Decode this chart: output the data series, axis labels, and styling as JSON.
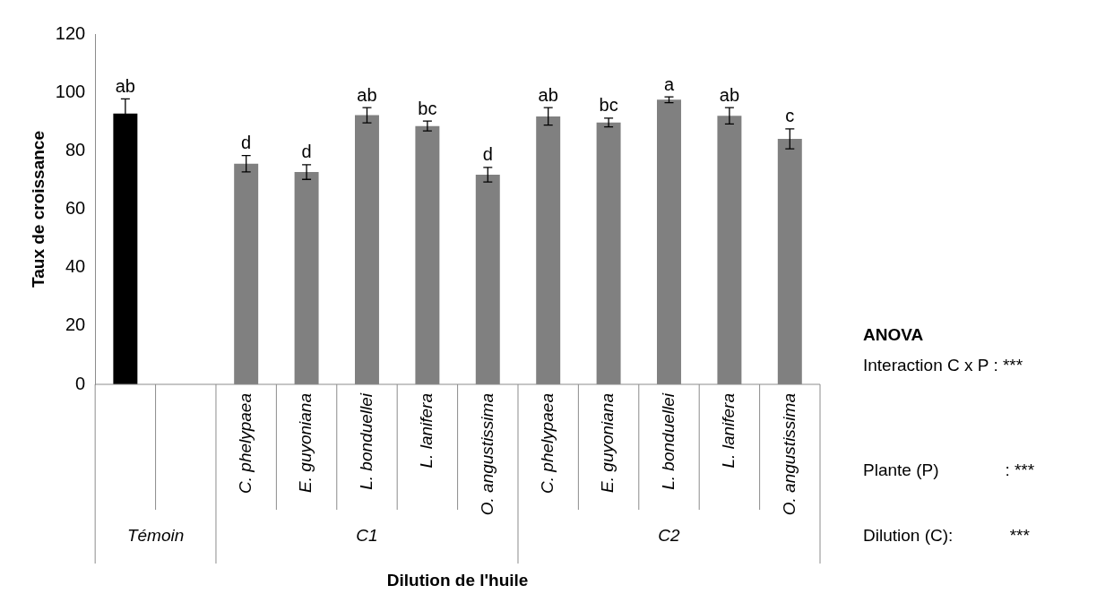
{
  "chart_data": {
    "type": "bar",
    "xlabel": "Dilution de l'huile",
    "ylabel": "Taux de croissance",
    "categories": [
      null,
      null,
      "C. phelypaea",
      "E. guyoniana",
      "L. bonduellei",
      "L. lanifera",
      "O. angustissima",
      "C. phelypaea",
      "E. guyoniana",
      "L. bonduellei",
      "L. lanifera",
      "O. angustissima"
    ],
    "values": [
      92.8,
      null,
      75.6,
      72.7,
      92.2,
      88.5,
      71.8,
      91.8,
      89.7,
      97.5,
      92.0,
      84.1
    ],
    "errors": [
      5,
      null,
      2.8,
      2.5,
      2.6,
      1.7,
      2.5,
      3,
      1.5,
      1,
      2.8,
      3.4
    ],
    "colors": [
      "#000000",
      "#808080",
      "#808080",
      "#808080",
      "#808080",
      "#808080",
      "#808080",
      "#808080",
      "#808080",
      "#808080",
      "#808080",
      "#808080"
    ],
    "value_labels": [
      "ab",
      null,
      "d",
      "d",
      "ab",
      "bc",
      "d",
      "ab",
      "bc",
      "a",
      "ab",
      "c"
    ],
    "ylim": [
      0,
      120
    ],
    "yticks": [
      0,
      20,
      40,
      60,
      80,
      100,
      120
    ],
    "grid": false,
    "legend": false,
    "annotations": [
      "Témoin",
      "C1",
      "C2",
      "ANOVA",
      "Interaction C x P : ***",
      "Plante (P)              : ***",
      "Dilution (C):            ***"
    ]
  }
}
